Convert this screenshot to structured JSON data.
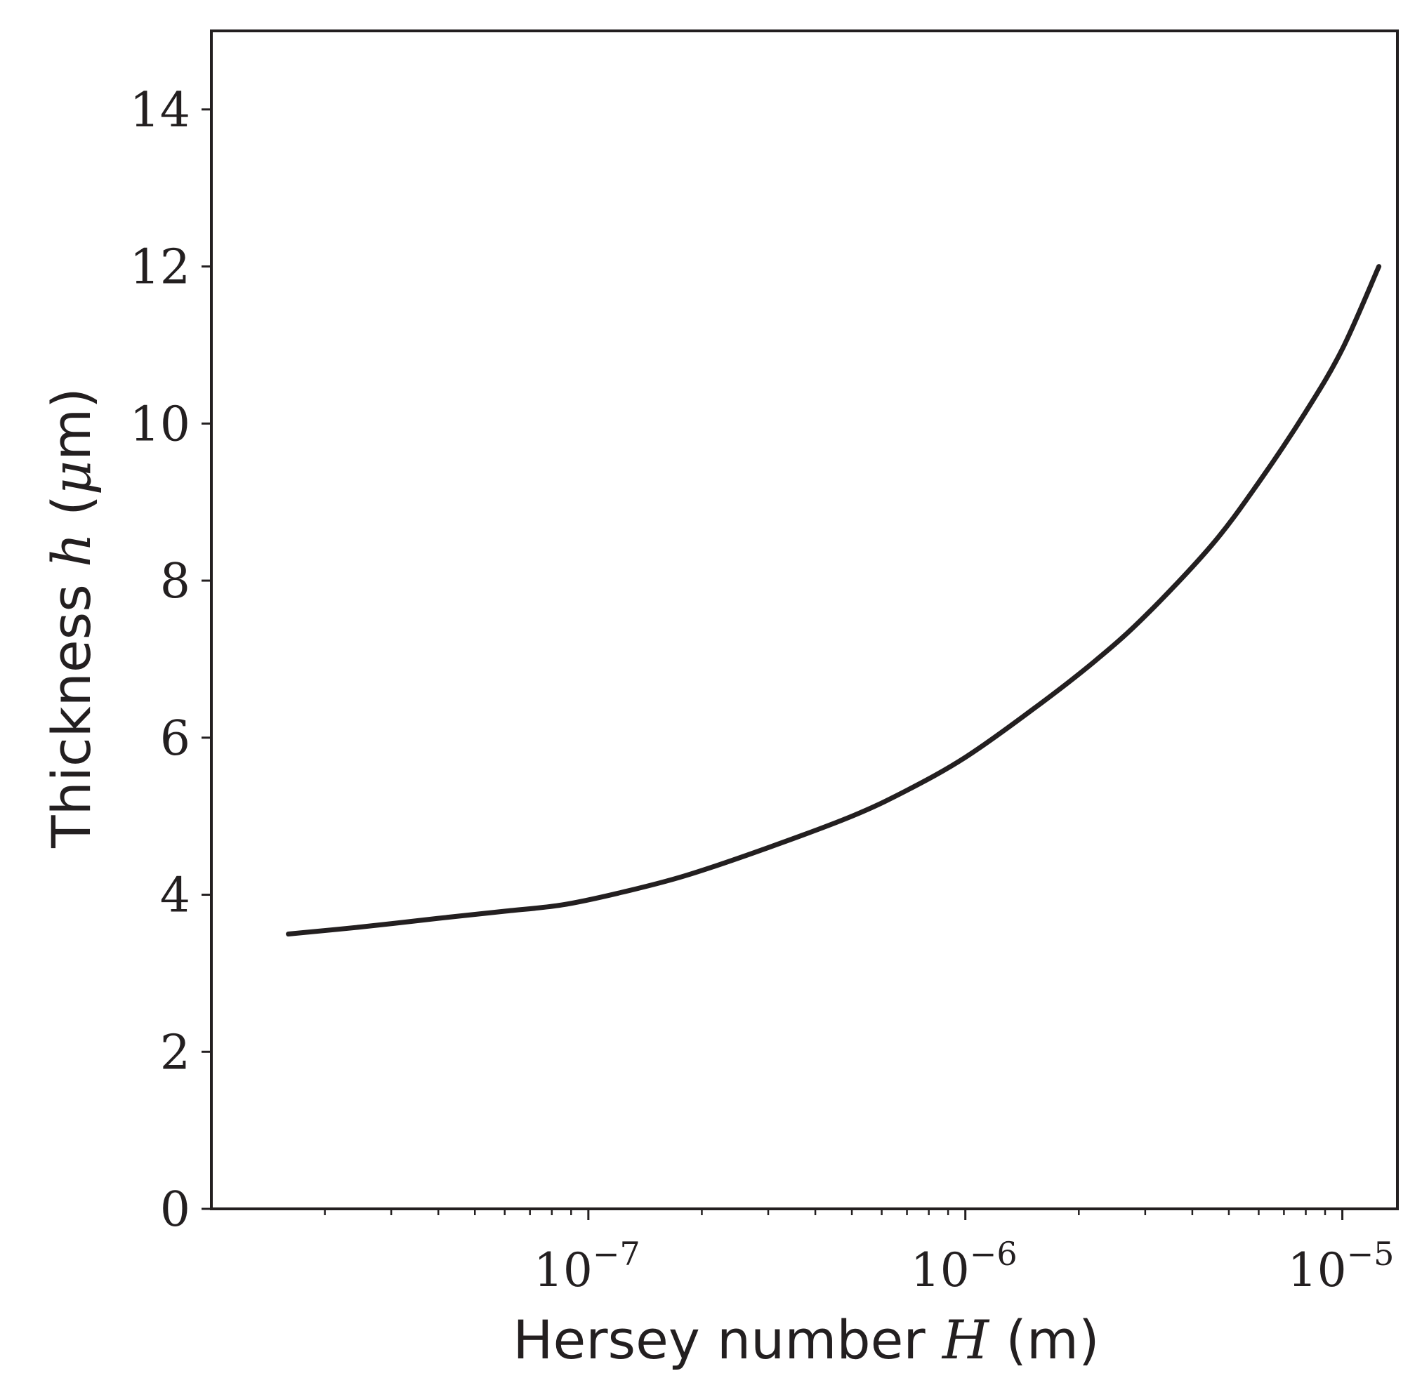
{
  "chart_data": {
    "type": "line",
    "title": "",
    "xlabel": {
      "prefix": "Hersey number",
      "symbol": "H",
      "suffix": "(m)"
    },
    "ylabel": {
      "prefix": "Thickness",
      "symbol": "h",
      "suffix_open": "(",
      "unit_symbol": "μ",
      "unit_rest": "m)"
    },
    "xscale": "log",
    "xlim": [
      1e-08,
      1.4e-05
    ],
    "ylim": [
      0,
      15
    ],
    "yticks": [
      0,
      2,
      4,
      6,
      8,
      10,
      12,
      14
    ],
    "xticks": [
      {
        "value": 1e-07,
        "base": "10",
        "exponent": "−7"
      },
      {
        "value": 1e-06,
        "base": "10",
        "exponent": "−6"
      },
      {
        "value": 1e-05,
        "base": "10",
        "exponent": "−5"
      }
    ],
    "grid": false,
    "line_color": "#231f20",
    "series": [
      {
        "x": [
          1.6e-08,
          2.5e-08,
          4e-08,
          6e-08,
          8.5e-08,
          1.2e-07,
          1.8e-07,
          3e-07,
          5e-07,
          7e-07,
          1e-06,
          1.5e-06,
          2.2e-06,
          3e-06,
          4.5e-06,
          6e-06,
          8e-06,
          1e-05,
          1.25e-05
        ],
        "y": [
          3.5,
          3.59,
          3.7,
          3.79,
          3.87,
          4.02,
          4.24,
          4.6,
          5.0,
          5.33,
          5.75,
          6.35,
          6.97,
          7.55,
          8.45,
          9.25,
          10.15,
          10.95,
          12.0
        ]
      }
    ]
  }
}
